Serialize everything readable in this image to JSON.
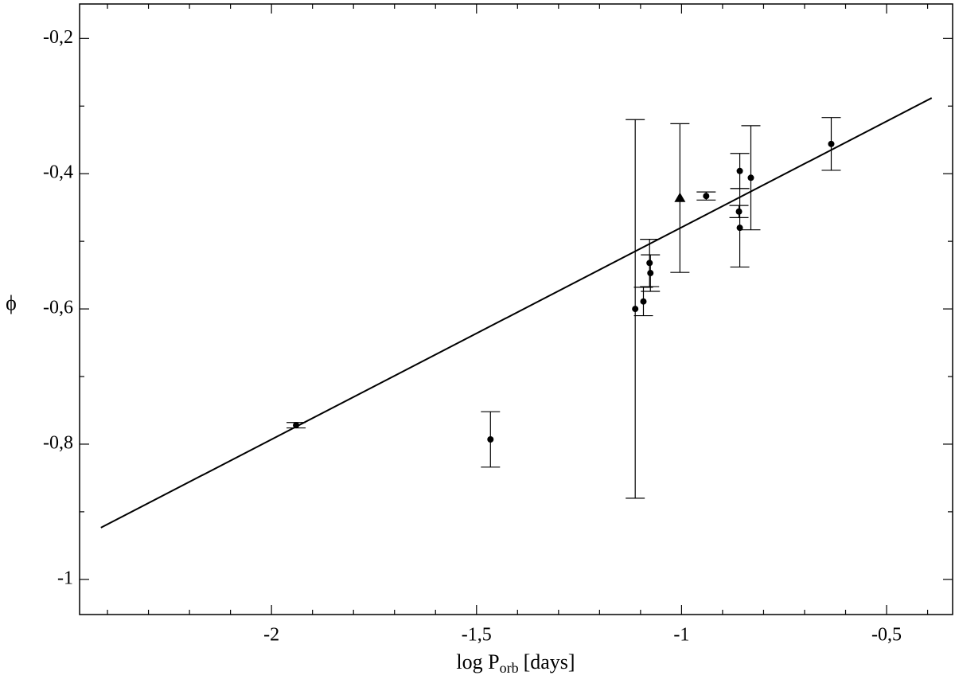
{
  "chart_data": {
    "type": "scatter",
    "xlabel": [
      "log P",
      "orb",
      "[days]"
    ],
    "ylabel": "ϕ",
    "xlim": [
      -2.468,
      -0.339
    ],
    "ylim": [
      -1.052,
      -0.149
    ],
    "xticks": [
      {
        "value": -2,
        "label": "-2"
      },
      {
        "value": -1.5,
        "label": "-1,5"
      },
      {
        "value": -1,
        "label": "-1"
      },
      {
        "value": -0.5,
        "label": "-0,5"
      }
    ],
    "yticks": [
      {
        "value": -1,
        "label": "-1"
      },
      {
        "value": -0.8,
        "label": "-0,8"
      },
      {
        "value": -0.6,
        "label": "-0,6"
      },
      {
        "value": -0.4,
        "label": "-0,4"
      },
      {
        "value": -0.2,
        "label": "-0,2"
      }
    ],
    "xminorticks": [
      -2.4,
      -2.3,
      -2.2,
      -2.1,
      -1.9,
      -1.8,
      -1.7,
      -1.6,
      -1.4,
      -1.3,
      -1.2,
      -1.1,
      -0.9,
      -0.8,
      -0.7,
      -0.6,
      -0.4
    ],
    "yminorticks": [
      -0.9,
      -0.7,
      -0.5,
      -0.3
    ],
    "color": "#000000",
    "x": [
      -1.94,
      -1.466,
      -1.113,
      -1.093,
      -1.078,
      -1.076,
      -1.004,
      -0.94,
      -0.858,
      -0.86,
      -0.858,
      -0.831,
      -0.635
    ],
    "values": [
      -0.772,
      -0.793,
      -0.6,
      -0.589,
      -0.532,
      -0.547,
      -0.436,
      -0.433,
      -0.396,
      -0.456,
      -0.48,
      -0.406,
      -0.356
    ],
    "errors": [
      0.004,
      0.041,
      0.28,
      0.021,
      0.035,
      0.027,
      0.11,
      0.006,
      0.026,
      0.009,
      0.058,
      0.077,
      0.039
    ],
    "markers": [
      "circle",
      "circle",
      "circle",
      "circle",
      "circle",
      "circle",
      "triangle",
      "circle",
      "circle",
      "circle",
      "circle",
      "circle",
      "circle"
    ],
    "fit": {
      "x": [
        -2.416,
        -0.39
      ],
      "values": [
        -0.9235,
        -0.288
      ]
    }
  }
}
